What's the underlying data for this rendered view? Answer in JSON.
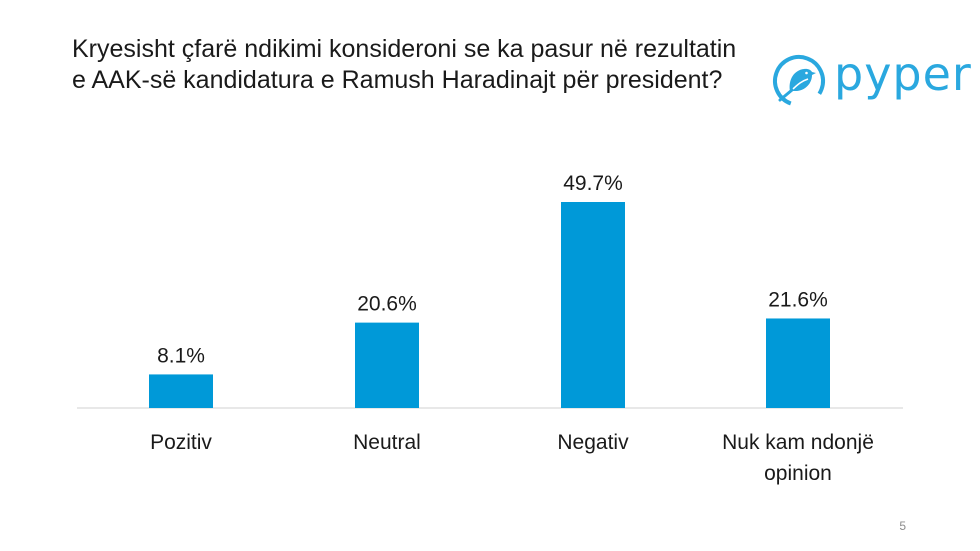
{
  "slide": {
    "title": "Kryesisht çfarë ndikimi konsideroni se ka pasur në rezultatin e AAK-së kandidatura e Ramush Haradinajt për president?",
    "logo_text": "pyper",
    "page_number": "5"
  },
  "colors": {
    "bar": "#0099d8",
    "axis": "#d9d9d9",
    "text": "#1a1a1a",
    "logo": "#2aa8df"
  },
  "chart_data": {
    "type": "bar",
    "title": "Kryesisht çfarë ndikimi konsideroni se ka pasur në rezultatin e AAK-së kandidatura e Ramush Haradinajt për president?",
    "categories": [
      [
        "Pozitiv"
      ],
      [
        "Neutral"
      ],
      [
        "Negativ"
      ],
      [
        "Nuk kam ndonjë",
        "opinion"
      ]
    ],
    "values": [
      8.1,
      20.6,
      49.7,
      21.6
    ],
    "value_labels": [
      "8.1%",
      "20.6%",
      "49.7%",
      "21.6%"
    ],
    "unit": "%",
    "ylim": [
      0,
      49.7
    ],
    "grid": false,
    "legend": "none"
  }
}
